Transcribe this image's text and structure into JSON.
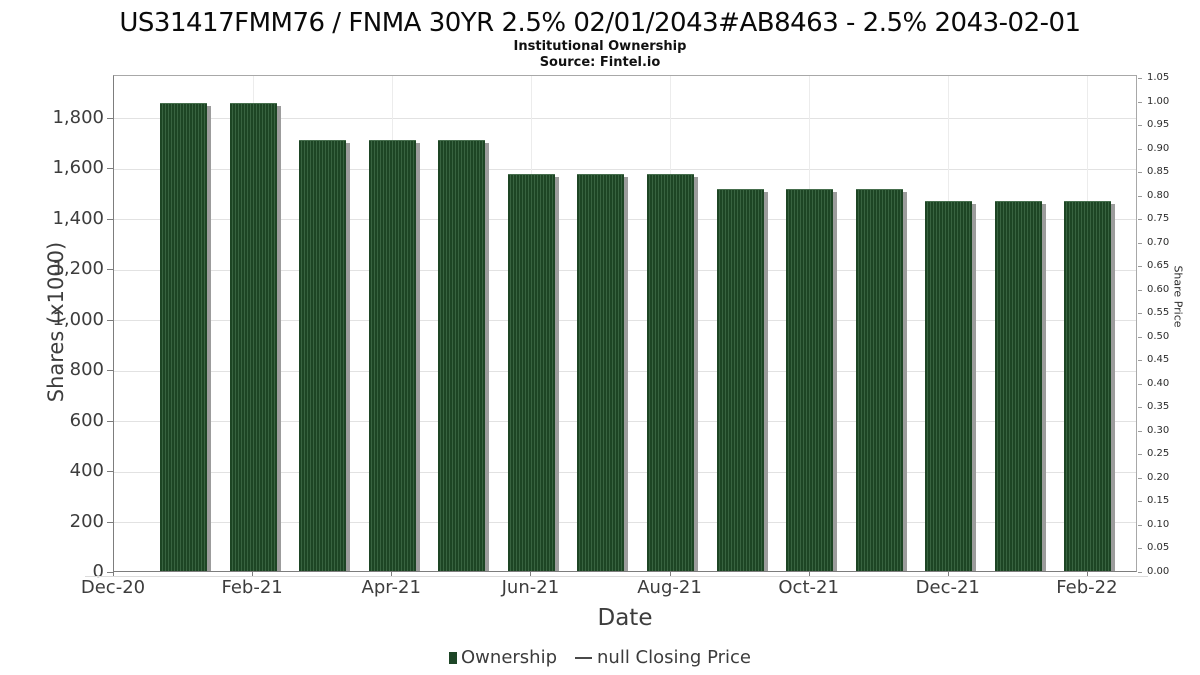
{
  "header": {
    "title": "US31417FMM76 / FNMA 30YR 2.5% 02/01/2043#AB8463 - 2.5% 2043-02-01",
    "subtitle": "Institutional Ownership",
    "source": "Source: Fintel.io"
  },
  "chart_data": {
    "type": "bar",
    "title": "US31417FMM76 / FNMA 30YR 2.5% 02/01/2043#AB8463 - 2.5% 2043-02-01",
    "subtitle": "Institutional Ownership",
    "source": "Source: Fintel.io",
    "xlabel": "Date",
    "ylabel": "Shares (x1000)",
    "ylabel_right": "Share Price",
    "categories": [
      "Jan-21",
      "Feb-21",
      "Mar-21",
      "Apr-21",
      "May-21",
      "Jun-21",
      "Jul-21",
      "Aug-21",
      "Sep-21",
      "Oct-21",
      "Nov-21",
      "Dec-21",
      "Jan-22",
      "Feb-22"
    ],
    "series": [
      {
        "name": "Ownership",
        "values": [
          1860,
          1860,
          1715,
          1715,
          1715,
          1580,
          1580,
          1580,
          1520,
          1520,
          1520,
          1475,
          1475,
          1475
        ]
      }
    ],
    "grid": "on",
    "legend_position": "bottom-center",
    "left_axis": {
      "tick_values": [
        0,
        200,
        400,
        600,
        800,
        1000,
        1200,
        1400,
        1600,
        1800
      ],
      "tick_labels": [
        "0",
        "200",
        "400",
        "600",
        "800",
        "1,000",
        "1,200",
        "1,400",
        "1,600",
        "1,800"
      ],
      "range": [
        0,
        1965
      ]
    },
    "x_axis": {
      "tick_labels": [
        "Dec-20",
        "Feb-21",
        "Apr-21",
        "Jun-21",
        "Aug-21",
        "Oct-21",
        "Dec-21",
        "Feb-22"
      ]
    },
    "right_axis": {
      "tick_labels": [
        "0.00",
        "0.05",
        "0.10",
        "0.15",
        "0.20",
        "0.25",
        "0.30",
        "0.35",
        "0.40",
        "0.45",
        "0.50",
        "0.55",
        "0.60",
        "0.65",
        "0.70",
        "0.75",
        "0.80",
        "0.85",
        "0.90",
        "0.95",
        "1.00",
        "1.05"
      ],
      "range": [
        0,
        1.05
      ]
    },
    "legend": [
      {
        "marker": "square",
        "label": "Ownership",
        "color": "#1e4627"
      },
      {
        "marker": "dash",
        "label": "null Closing Price",
        "color": "#4a4a4a"
      }
    ],
    "colors": {
      "bar_fill": "#1d4524",
      "bar_stripe": "#386340",
      "bar_shadow": "#9c9c9c",
      "gridline": "#e2e2e2",
      "text": "#3d3d3d"
    }
  }
}
